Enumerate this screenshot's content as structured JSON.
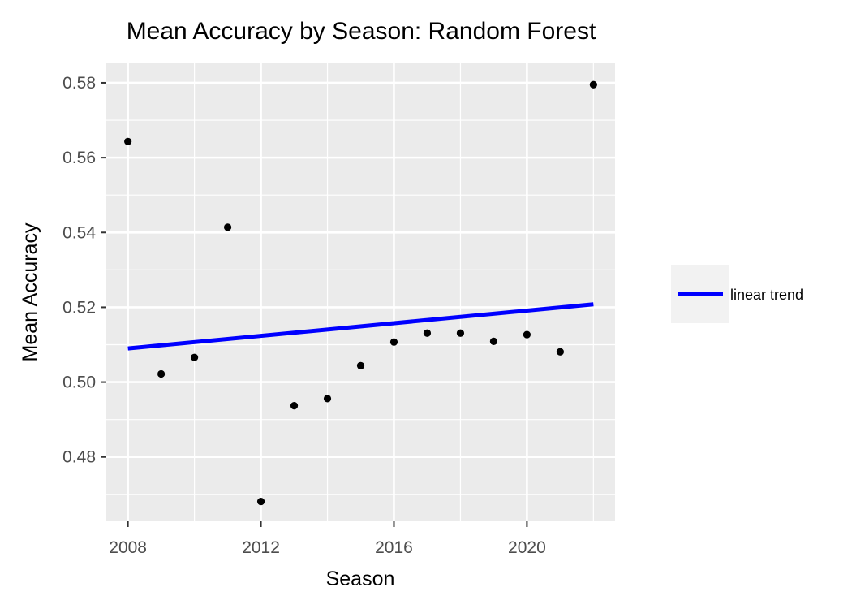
{
  "chart_data": {
    "type": "scatter",
    "title": "Mean Accuracy by Season: Random Forest",
    "xlabel": "Season",
    "ylabel": "Mean Accuracy",
    "xlim": [
      2007.35,
      2022.65
    ],
    "ylim": [
      0.4628,
      0.5852
    ],
    "x_ticks": [
      2008,
      2012,
      2016,
      2020
    ],
    "x_tick_labels": [
      "2008",
      "2012",
      "2016",
      "2020"
    ],
    "y_ticks": [
      0.48,
      0.5,
      0.52,
      0.54,
      0.56,
      0.58
    ],
    "y_tick_labels": [
      "0.48",
      "0.50",
      "0.52",
      "0.54",
      "0.56",
      "0.58"
    ],
    "grid": true,
    "legend_position": "right",
    "series": [
      {
        "kind": "points",
        "color": "#000000",
        "x": [
          2008,
          2009,
          2010,
          2011,
          2012,
          2013,
          2014,
          2015,
          2016,
          2017,
          2018,
          2019,
          2020,
          2021,
          2022
        ],
        "y": [
          0.5643,
          0.5022,
          0.5066,
          0.5414,
          0.4681,
          0.4937,
          0.4956,
          0.5044,
          0.5107,
          0.5131,
          0.5131,
          0.5109,
          0.5127,
          0.5081,
          0.5795
        ]
      },
      {
        "kind": "line",
        "name": "linear trend",
        "color": "#0000ff",
        "x": [
          2008,
          2022
        ],
        "y": [
          0.509,
          0.5208
        ]
      }
    ]
  }
}
